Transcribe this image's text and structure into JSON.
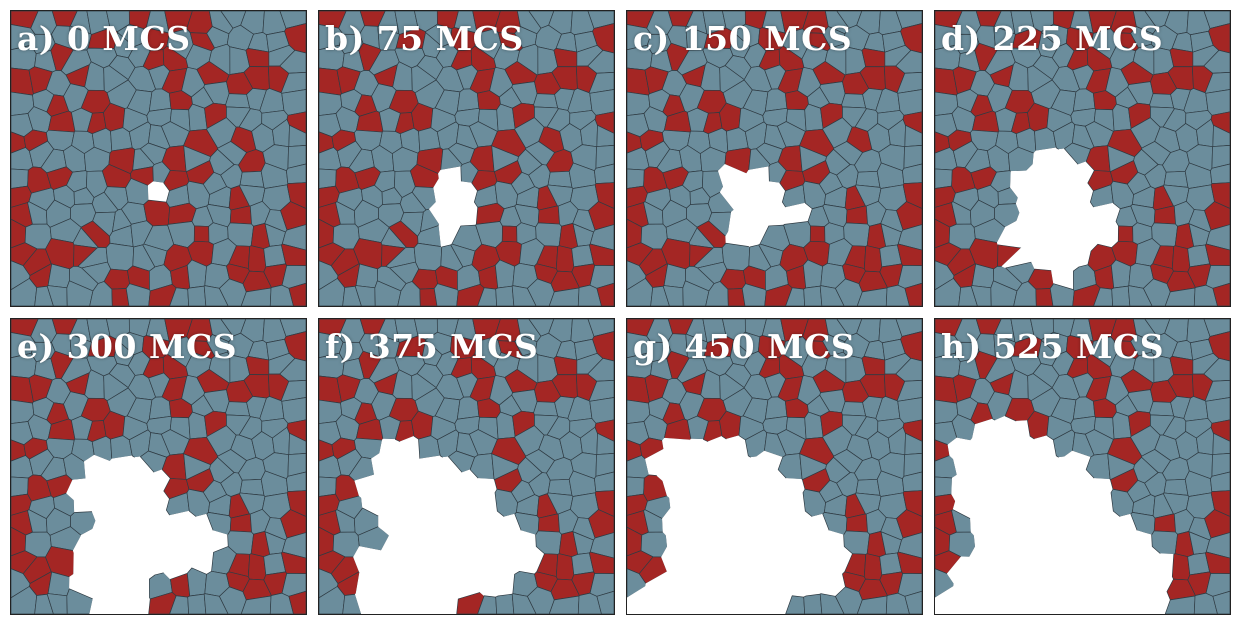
{
  "colors": {
    "grain": "#6b8d9c",
    "second_phase": "#a42624",
    "pore": "#ffffff",
    "boundary": "#2f3b43",
    "frame": "#222222"
  },
  "panels": [
    {
      "label": "a) 0 MCS",
      "mcs": 0
    },
    {
      "label": "b) 75 MCS",
      "mcs": 75
    },
    {
      "label": "c) 150 MCS",
      "mcs": 150
    },
    {
      "label": "d) 225 MCS",
      "mcs": 225
    },
    {
      "label": "e) 300 MCS",
      "mcs": 300
    },
    {
      "label": "f) 375 MCS",
      "mcs": 375
    },
    {
      "label": "g) 450 MCS",
      "mcs": 450
    },
    {
      "label": "h) 525 MCS",
      "mcs": 525
    }
  ]
}
